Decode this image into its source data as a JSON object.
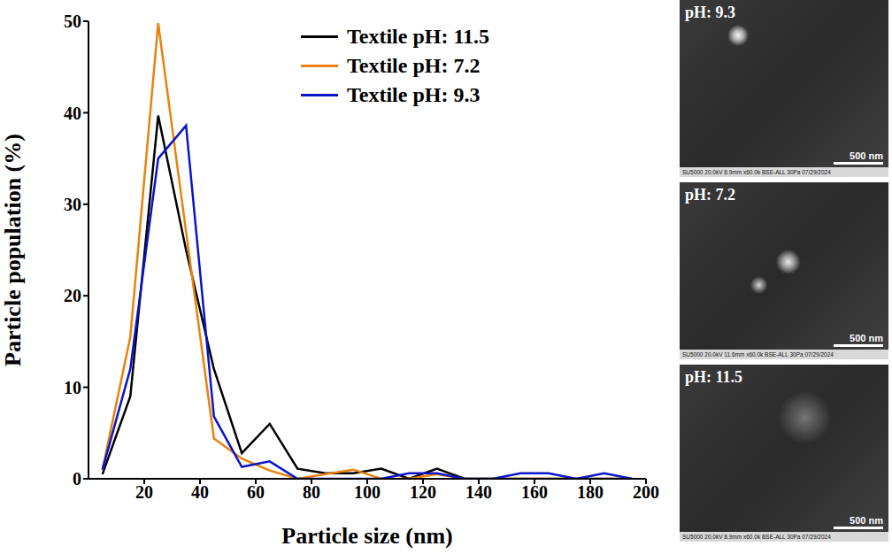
{
  "chart_data": {
    "type": "line",
    "xlabel": "Particle size (nm)",
    "ylabel": "Particle population (%)",
    "x": [
      5,
      15,
      25,
      35,
      45,
      55,
      65,
      75,
      85,
      95,
      105,
      115,
      125,
      135,
      145,
      155,
      165,
      175,
      185,
      195
    ],
    "series": [
      {
        "name": "Textile pH: 11.5",
        "color": "#000000",
        "values": [
          0.5,
          9,
          39.7,
          25,
          12,
          2.8,
          6,
          1.1,
          0.6,
          0.6,
          1.1,
          0,
          1.1,
          0,
          0,
          0,
          0,
          0,
          0,
          0
        ]
      },
      {
        "name": "Textile pH: 7.2",
        "color": "#e8820c",
        "values": [
          1,
          15.5,
          49.8,
          27,
          4.4,
          2.2,
          0.9,
          0,
          0.5,
          1,
          0,
          0,
          0.5,
          0,
          0,
          0,
          0,
          0,
          0,
          0
        ]
      },
      {
        "name": "Textile pH: 9.3",
        "color": "#0a14c8",
        "values": [
          1,
          12,
          35,
          38.6,
          6.8,
          1.3,
          1.9,
          0,
          0,
          0,
          0,
          0.6,
          0.6,
          0,
          0,
          0.6,
          0.6,
          0,
          0.6,
          0
        ]
      }
    ],
    "xlim": [
      0,
      200
    ],
    "xticks": [
      20,
      40,
      60,
      80,
      100,
      120,
      140,
      160,
      180,
      200
    ],
    "ylim": [
      0,
      50
    ],
    "yticks": [
      0,
      10,
      20,
      30,
      40,
      50
    ],
    "legend": "upper right",
    "grid": false
  },
  "images": [
    {
      "label": "pH: 9.3",
      "scale_bar": "500 nm",
      "footer": "SU5000 20.0kV 8.9mm x60.0k BSE-ALL 30Pa 07/29/2024"
    },
    {
      "label": "pH: 7.2",
      "scale_bar": "500 nm",
      "footer": "SU5000 20.0kV 11.6mm x60.0k BSE-ALL 30Pa 07/29/2024"
    },
    {
      "label": "pH: 11.5",
      "scale_bar": "500 nm",
      "footer": "SU5000 20.0kV 8.9mm x60.0k BSE-ALL 30Pa 07/29/2024"
    }
  ]
}
